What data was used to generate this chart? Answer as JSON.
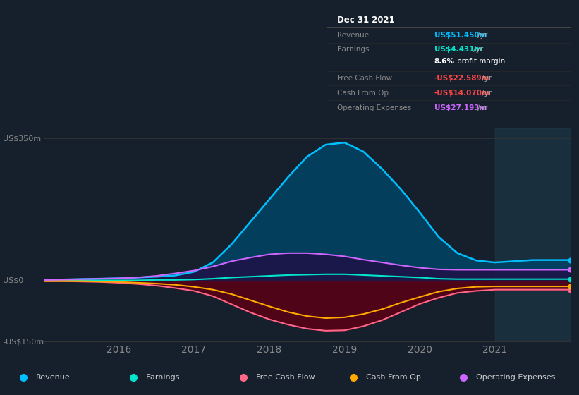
{
  "bg_color": "#16202d",
  "chart_bg": "#16202d",
  "ylim": [
    -150,
    375
  ],
  "ylabel_top": "US$350m",
  "ylabel_zero": "US$0",
  "ylabel_bottom": "-US$150m",
  "xlim": [
    2015.0,
    2022.0
  ],
  "xticks": [
    2016,
    2017,
    2018,
    2019,
    2020,
    2021
  ],
  "info_box": {
    "title": "Dec 31 2021",
    "rows": [
      {
        "label": "Revenue",
        "value": "US$51.450m",
        "value_color": "#00bfff"
      },
      {
        "label": "Earnings",
        "value": "US$4.431m",
        "value_color": "#00e5cc"
      },
      {
        "label": "",
        "value": "8.6% profit margin",
        "value_color": "#ffffff",
        "bold_part": "8.6%"
      },
      {
        "label": "Free Cash Flow",
        "value": "-US$22.589m",
        "value_color": "#ff4444"
      },
      {
        "label": "Cash From Op",
        "value": "-US$14.070m",
        "value_color": "#ff4444"
      },
      {
        "label": "Operating Expenses",
        "value": "US$27.193m",
        "value_color": "#cc66ff"
      }
    ]
  },
  "legend": [
    {
      "label": "Revenue",
      "color": "#00bfff"
    },
    {
      "label": "Earnings",
      "color": "#00e5cc"
    },
    {
      "label": "Free Cash Flow",
      "color": "#ff6688"
    },
    {
      "label": "Cash From Op",
      "color": "#ffaa00"
    },
    {
      "label": "Operating Expenses",
      "color": "#cc66ff"
    }
  ],
  "series": {
    "x": [
      2015.0,
      2015.25,
      2015.5,
      2015.75,
      2016.0,
      2016.25,
      2016.5,
      2016.75,
      2017.0,
      2017.25,
      2017.5,
      2017.75,
      2018.0,
      2018.25,
      2018.5,
      2018.75,
      2019.0,
      2019.25,
      2019.5,
      2019.75,
      2020.0,
      2020.25,
      2020.5,
      2020.75,
      2021.0,
      2021.25,
      2021.5,
      2021.75,
      2022.0
    ],
    "revenue": [
      2,
      3,
      4,
      5,
      6,
      8,
      10,
      13,
      22,
      45,
      90,
      145,
      200,
      255,
      305,
      335,
      340,
      318,
      275,
      225,
      168,
      108,
      68,
      50,
      45,
      48,
      51,
      51,
      51
    ],
    "earnings": [
      1,
      1,
      1,
      1,
      1,
      1,
      2,
      2,
      3,
      5,
      8,
      10,
      12,
      14,
      15,
      16,
      16,
      14,
      12,
      10,
      8,
      5,
      4,
      4,
      4,
      4,
      4,
      4,
      4
    ],
    "free_cash_flow": [
      -1,
      -1,
      -2,
      -3,
      -5,
      -8,
      -12,
      -18,
      -25,
      -38,
      -58,
      -78,
      -95,
      -108,
      -118,
      -123,
      -122,
      -112,
      -97,
      -77,
      -57,
      -42,
      -30,
      -25,
      -22,
      -22,
      -22,
      -22,
      -22
    ],
    "cash_from_op": [
      -1,
      -1,
      -1,
      -2,
      -3,
      -5,
      -7,
      -10,
      -15,
      -22,
      -33,
      -48,
      -63,
      -77,
      -87,
      -92,
      -90,
      -82,
      -70,
      -54,
      -40,
      -27,
      -19,
      -15,
      -14,
      -14,
      -14,
      -14,
      -14
    ],
    "operating_expenses": [
      2,
      3,
      4,
      5,
      6,
      8,
      12,
      18,
      25,
      35,
      48,
      57,
      65,
      68,
      68,
      65,
      60,
      52,
      45,
      38,
      32,
      28,
      27,
      27,
      27,
      27,
      27,
      27,
      27
    ]
  },
  "highlight_x": 2021.0,
  "revenue_color": "#00bfff",
  "earnings_color": "#00e5cc",
  "fcf_color": "#ff6688",
  "cop_color": "#ffaa00",
  "opex_color": "#cc66ff",
  "revenue_fill": "#004466",
  "fcf_fill": "#5a0015",
  "opex_fill": "#2a0040",
  "highlight_color": "#1e3a4a"
}
